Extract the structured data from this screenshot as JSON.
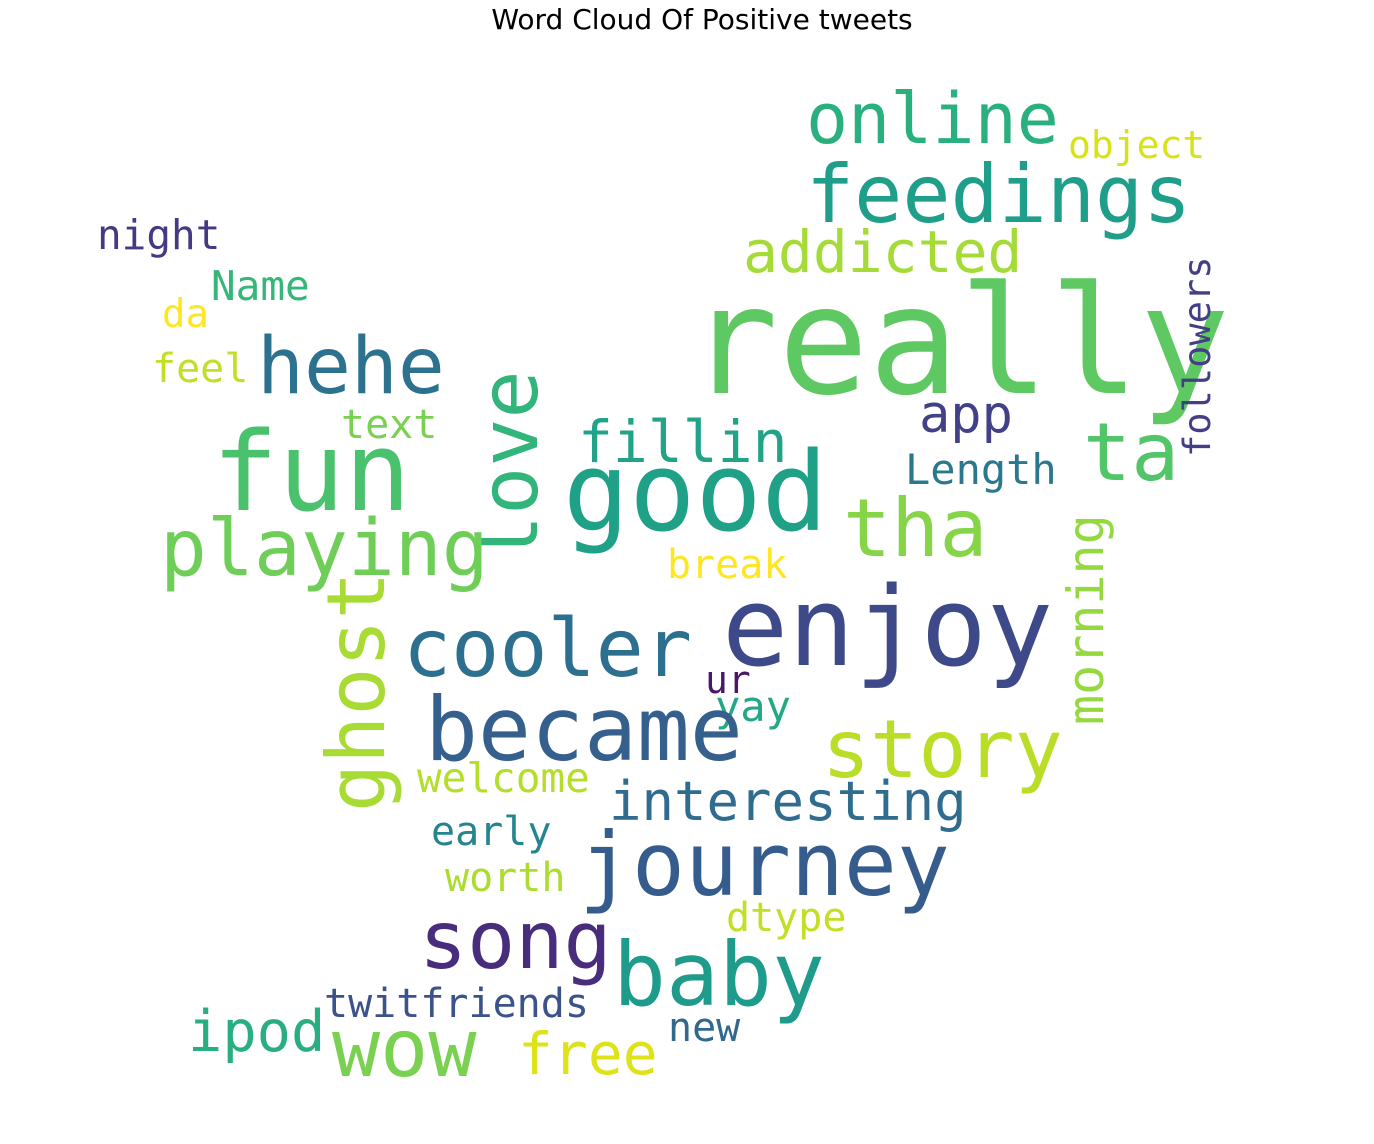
{
  "title": "Word Cloud Of Positive tweets",
  "words": [
    {
      "text": "really",
      "color": "#5ec962"
    },
    {
      "text": "online",
      "color": "#2ab07f"
    },
    {
      "text": "feedings",
      "color": "#1f9e89"
    },
    {
      "text": "object",
      "color": "#d8e219"
    },
    {
      "text": "addicted",
      "color": "#a5db36"
    },
    {
      "text": "night",
      "color": "#443983"
    },
    {
      "text": "Name",
      "color": "#35b779"
    },
    {
      "text": "da",
      "color": "#fde725"
    },
    {
      "text": "followers",
      "color": "#433e85"
    },
    {
      "text": "hehe",
      "color": "#2c728e"
    },
    {
      "text": "feel",
      "color": "#c0df25"
    },
    {
      "text": "fun",
      "color": "#4ac16d"
    },
    {
      "text": "text",
      "color": "#7ad151"
    },
    {
      "text": "love",
      "color": "#31b57b"
    },
    {
      "text": "app",
      "color": "#424086"
    },
    {
      "text": "ta",
      "color": "#52c569"
    },
    {
      "text": "fillin",
      "color": "#20a386"
    },
    {
      "text": "good",
      "color": "#1fa187"
    },
    {
      "text": "Length",
      "color": "#2a788e"
    },
    {
      "text": "tha",
      "color": "#86d549"
    },
    {
      "text": "playing",
      "color": "#6ece58"
    },
    {
      "text": "break",
      "color": "#fde725"
    },
    {
      "text": "morning",
      "color": "#95d840"
    },
    {
      "text": "enjoy",
      "color": "#3e4989"
    },
    {
      "text": "cooler",
      "color": "#2d6f8e"
    },
    {
      "text": "ghost",
      "color": "#a8db34"
    },
    {
      "text": "ur",
      "color": "#48186a"
    },
    {
      "text": "yay",
      "color": "#22a884"
    },
    {
      "text": "became",
      "color": "#355f8d"
    },
    {
      "text": "story",
      "color": "#bade28"
    },
    {
      "text": "welcome",
      "color": "#b5de2b"
    },
    {
      "text": "interesting",
      "color": "#2f6c8e"
    },
    {
      "text": "early",
      "color": "#25858e"
    },
    {
      "text": "journey",
      "color": "#365c8d"
    },
    {
      "text": "worth",
      "color": "#addc30"
    },
    {
      "text": "song",
      "color": "#472d7b"
    },
    {
      "text": "dtype",
      "color": "#c2df23"
    },
    {
      "text": "baby",
      "color": "#1e9b8a"
    },
    {
      "text": "twitfriends",
      "color": "#3b528b"
    },
    {
      "text": "ipod",
      "color": "#29af7f"
    },
    {
      "text": "wow",
      "color": "#7ad151"
    },
    {
      "text": "free",
      "color": "#dde318"
    },
    {
      "text": "new",
      "color": "#31688e"
    }
  ]
}
